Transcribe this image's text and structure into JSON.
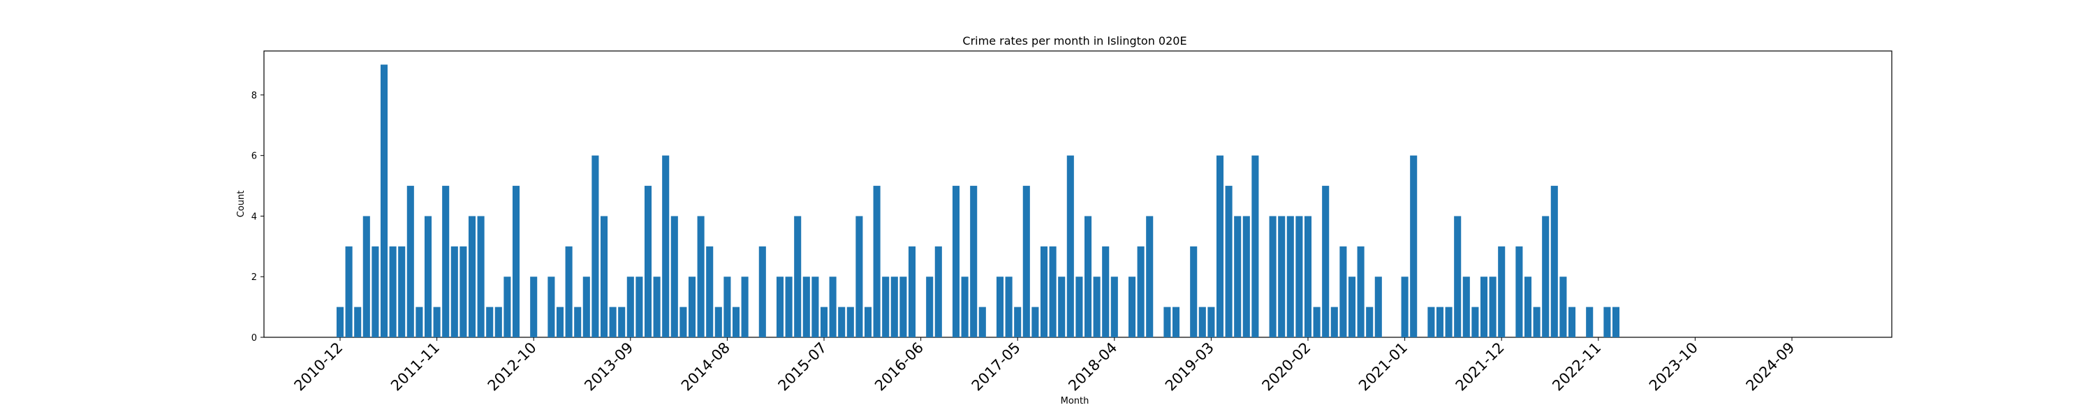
{
  "chart_data": {
    "type": "bar",
    "title": "Crime rates per month in Islington 020E",
    "xlabel": "Month",
    "ylabel": "Count",
    "ylim": [
      0,
      9.45
    ],
    "yticks": [
      0,
      2,
      4,
      6,
      8
    ],
    "xtick_labels": [
      "2010-12",
      "2011-11",
      "2012-10",
      "2013-09",
      "2014-08",
      "2015-07",
      "2016-06",
      "2017-05",
      "2018-04",
      "2019-03",
      "2020-02",
      "2021-01",
      "2021-12",
      "2022-11",
      "2023-10",
      "2024-09"
    ],
    "color": "#1f77b4",
    "grid": false,
    "legend": "none",
    "start_month": "2010-12",
    "values": [
      1,
      3,
      1,
      4,
      3,
      9,
      3,
      3,
      5,
      1,
      4,
      1,
      5,
      3,
      3,
      4,
      4,
      1,
      1,
      2,
      5,
      0,
      2,
      0,
      2,
      1,
      3,
      1,
      2,
      6,
      4,
      1,
      1,
      2,
      2,
      5,
      2,
      6,
      4,
      1,
      2,
      4,
      3,
      1,
      2,
      1,
      2,
      0,
      3,
      0,
      2,
      2,
      4,
      2,
      2,
      1,
      2,
      1,
      1,
      4,
      1,
      5,
      2,
      2,
      2,
      3,
      0,
      2,
      3,
      0,
      5,
      2,
      5,
      1,
      0,
      2,
      2,
      1,
      5,
      1,
      3,
      3,
      2,
      6,
      2,
      4,
      2,
      3,
      2,
      0,
      2,
      3,
      4,
      0,
      1,
      1,
      0,
      3,
      1,
      1,
      6,
      5,
      4,
      4,
      6,
      0,
      4,
      4,
      4,
      4,
      4,
      1,
      5,
      1,
      3,
      2,
      3,
      1,
      2,
      0,
      0,
      2,
      6,
      0,
      1,
      1,
      1,
      4,
      2,
      1,
      2,
      2,
      3,
      0,
      3,
      2,
      1,
      4,
      5,
      2,
      1,
      0,
      1,
      0,
      1,
      1
    ]
  }
}
